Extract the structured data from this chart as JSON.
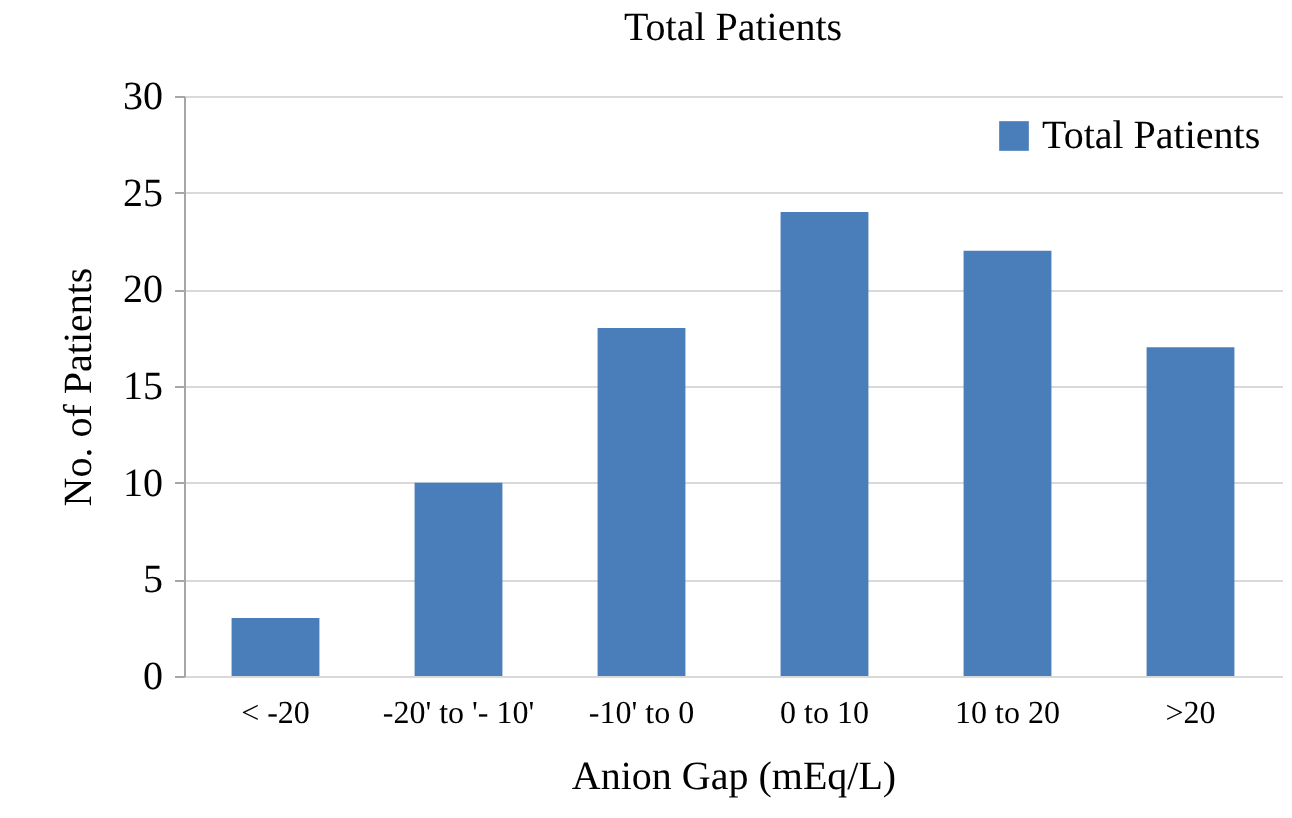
{
  "chart_data": {
    "type": "bar",
    "title": "Total Patients",
    "xlabel": "Anion Gap (mEq/L)",
    "ylabel": "No. of Patients",
    "categories": [
      "< -20",
      "-20' to '- 10'",
      "-10' to 0",
      "0 to 10",
      "10 to 20",
      ">20"
    ],
    "series": [
      {
        "name": "Total Patients",
        "color": "#4a7ebb",
        "values": [
          3,
          10,
          18,
          24,
          22,
          17
        ]
      }
    ],
    "ylim": [
      0,
      30
    ],
    "yticks": [
      0,
      5,
      10,
      15,
      20,
      25,
      30
    ],
    "grid": "y",
    "legend": "top right"
  }
}
